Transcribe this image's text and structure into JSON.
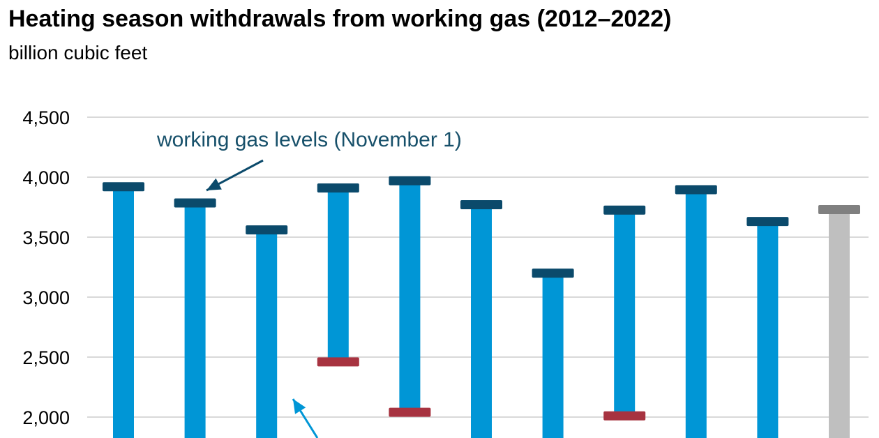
{
  "chart_data": {
    "type": "bar",
    "title": "Heating season withdrawals from working gas (2012–2022)",
    "subtitle": "billion cubic feet",
    "ylim": [
      1800,
      4500
    ],
    "y_ticks": [
      2000,
      2500,
      3000,
      3500,
      4000,
      4500
    ],
    "y_tick_labels": [
      "2,000",
      "2,500",
      "3,000",
      "3,500",
      "4,000",
      "4,500"
    ],
    "grid": true,
    "annotations": [
      {
        "text": "working gas levels (November 1)",
        "color": "#17506a"
      }
    ],
    "bars": [
      {
        "top": 3920,
        "low": null,
        "status": "historical"
      },
      {
        "top": 3785,
        "low": null,
        "status": "historical"
      },
      {
        "top": 3560,
        "low": null,
        "status": "historical"
      },
      {
        "top": 3910,
        "low": 2460,
        "status": "historical"
      },
      {
        "top": 3970,
        "low": 2040,
        "status": "historical"
      },
      {
        "top": 3770,
        "low": null,
        "status": "historical"
      },
      {
        "top": 3200,
        "low": null,
        "status": "historical"
      },
      {
        "top": 3725,
        "low": 2010,
        "status": "historical"
      },
      {
        "top": 3895,
        "low": null,
        "status": "historical"
      },
      {
        "top": 3630,
        "low": null,
        "status": "historical"
      },
      {
        "top": 3730,
        "low": null,
        "status": "forecast"
      }
    ],
    "colors": {
      "bar": "#0096d6",
      "cap": "#0b4a6b",
      "low_cap": "#a73340",
      "forecast_bar": "#bfbfbf",
      "forecast_cap": "#808080",
      "grid": "#d9d9d9",
      "arrow_dark": "#0b4a6b",
      "arrow_light": "#0096d6"
    }
  }
}
